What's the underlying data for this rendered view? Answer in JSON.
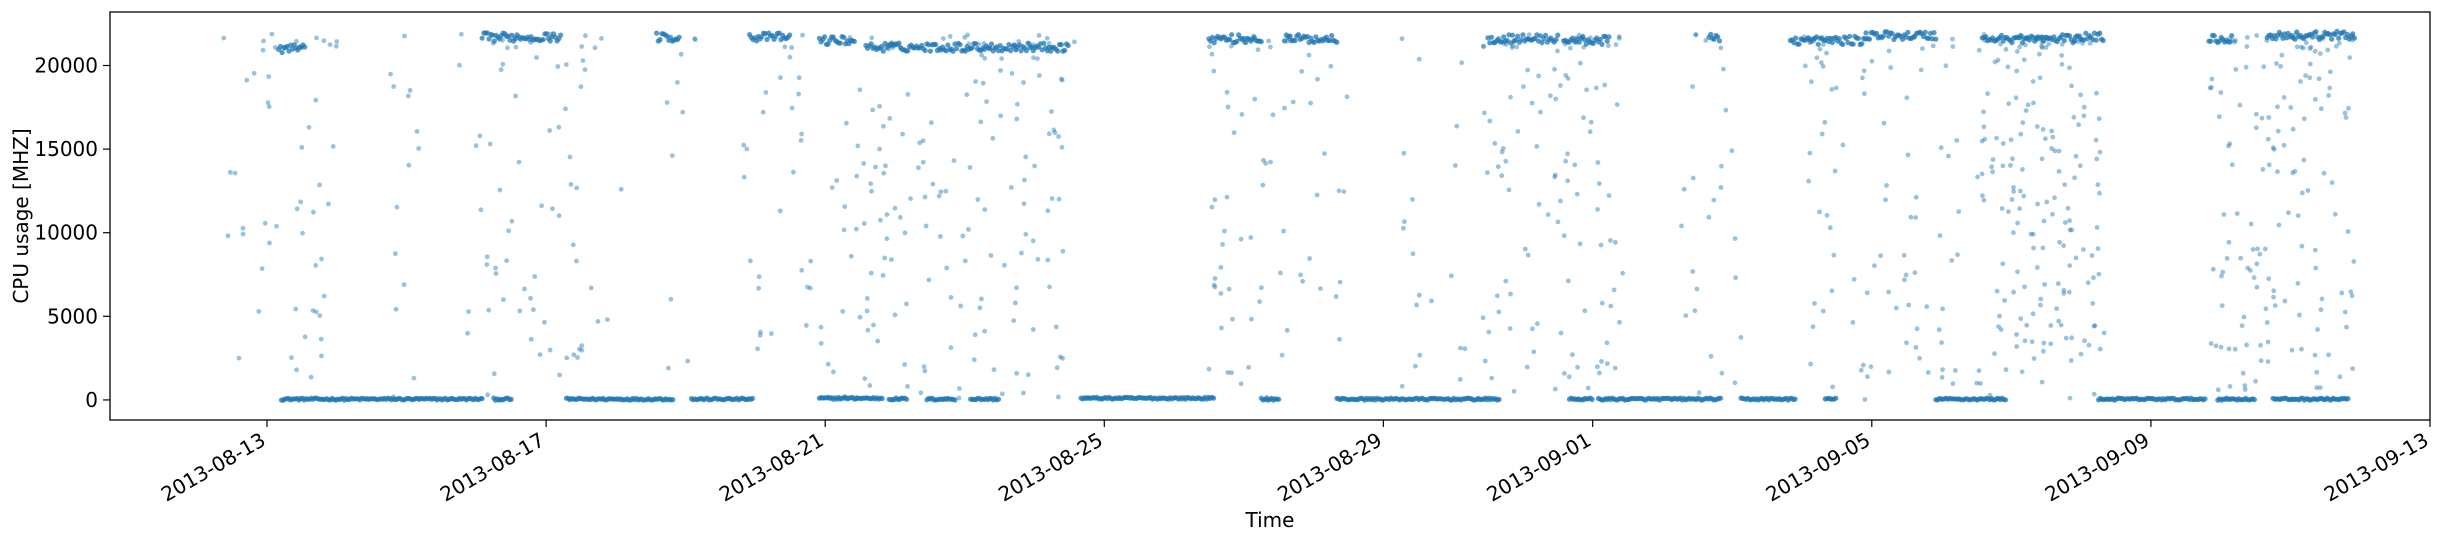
{
  "chart_data": {
    "type": "scatter",
    "title": "",
    "xlabel": "Time",
    "ylabel": "CPU usage [MHZ]",
    "x_type": "date",
    "xlim": [
      "2013-08-10T18:00",
      "2013-09-13T00:00"
    ],
    "ylim": [
      -1200,
      23200
    ],
    "x_ticks": [
      "2013-08-13",
      "2013-08-17",
      "2013-08-21",
      "2013-08-25",
      "2013-08-29",
      "2013-09-01",
      "2013-09-05",
      "2013-09-09",
      "2013-09-13"
    ],
    "y_ticks": [
      0,
      5000,
      10000,
      15000,
      20000
    ],
    "y_tick_labels": [
      "0",
      "5000",
      "10000",
      "15000",
      "20000"
    ],
    "grid": false,
    "legend": "none",
    "series": [
      {
        "color": "#1f77b4",
        "baseline_segments": [
          [
            "2013-08-13T05:00",
            "2013-08-16T02:00",
            50
          ],
          [
            "2013-08-16T06:00",
            "2013-08-16T12:00",
            50
          ],
          [
            "2013-08-17T07:00",
            "2013-08-18T20:00",
            50
          ],
          [
            "2013-08-19T02:00",
            "2013-08-19T23:00",
            50
          ],
          [
            "2013-08-20T22:00",
            "2013-08-21T20:00",
            100
          ],
          [
            "2013-08-21T22:00",
            "2013-08-22T04:00",
            60
          ],
          [
            "2013-08-22T11:00",
            "2013-08-22T21:00",
            50
          ],
          [
            "2013-08-23T02:00",
            "2013-08-23T12:00",
            50
          ],
          [
            "2013-08-24T16:00",
            "2013-08-26T14:00",
            100
          ],
          [
            "2013-08-27T06:00",
            "2013-08-27T12:00",
            50
          ],
          [
            "2013-08-28T08:00",
            "2013-08-30T16:00",
            50
          ],
          [
            "2013-08-31T16:00",
            "2013-09-01T00:00",
            50
          ],
          [
            "2013-09-01T02:00",
            "2013-09-02T20:00",
            50
          ],
          [
            "2013-09-03T03:00",
            "2013-09-03T22:00",
            50
          ],
          [
            "2013-09-04T08:00",
            "2013-09-04T12:00",
            50
          ],
          [
            "2013-09-05T22:00",
            "2013-09-06T22:00",
            50
          ],
          [
            "2013-09-08T06:00",
            "2013-09-09T19:00",
            50
          ],
          [
            "2013-09-09T23:00",
            "2013-09-10T12:00",
            50
          ],
          [
            "2013-09-10T18:00",
            "2013-09-11T20:00",
            50
          ]
        ],
        "plateau_segments": [
          [
            "2013-08-13T04:00",
            "2013-08-13T13:00",
            21000
          ],
          [
            "2013-08-16T02:00",
            "2013-08-17T05:00",
            21700
          ],
          [
            "2013-08-18T14:00",
            "2013-08-18T22:00",
            21700
          ],
          [
            "2013-08-19T22:00",
            "2013-08-20T12:00",
            21700
          ],
          [
            "2013-08-20T22:00",
            "2013-08-21T10:00",
            21500
          ],
          [
            "2013-08-21T14:00",
            "2013-08-24T12:00",
            21100
          ],
          [
            "2013-08-26T12:00",
            "2013-08-27T06:00",
            21600
          ],
          [
            "2013-08-27T14:00",
            "2013-08-28T08:00",
            21600
          ],
          [
            "2013-08-30T12:00",
            "2013-08-31T12:00",
            21600
          ],
          [
            "2013-08-31T14:00",
            "2013-09-01T06:00",
            21500
          ],
          [
            "2013-09-02T16:00",
            "2013-09-02T20:00",
            21700
          ],
          [
            "2013-09-03T20:00",
            "2013-09-04T22:00",
            21500
          ],
          [
            "2013-09-04T22:00",
            "2013-09-05T22:00",
            21800
          ],
          [
            "2013-09-06T14:00",
            "2013-09-07T22:00",
            21600
          ],
          [
            "2013-09-07T22:00",
            "2013-09-08T08:00",
            21700
          ],
          [
            "2013-09-09T20:00",
            "2013-09-10T04:00",
            21600
          ],
          [
            "2013-09-10T16:00",
            "2013-09-11T22:00",
            21800
          ]
        ],
        "scatter_ranges": [
          [
            "2013-08-12T09:00",
            "2013-08-13T12:00",
            28
          ],
          [
            "2013-08-13T12:00",
            "2013-08-14T00:00",
            22
          ],
          [
            "2013-08-14T18:00",
            "2013-08-15T06:00",
            14
          ],
          [
            "2013-08-15T18:00",
            "2013-08-17T12:00",
            60
          ],
          [
            "2013-08-17T12:00",
            "2013-08-18T02:00",
            12
          ],
          [
            "2013-08-18T16:00",
            "2013-08-19T06:00",
            10
          ],
          [
            "2013-08-19T16:00",
            "2013-08-21T08:00",
            40
          ],
          [
            "2013-08-21T08:00",
            "2013-08-24T14:00",
            160
          ],
          [
            "2013-08-26T12:00",
            "2013-08-28T12:00",
            70
          ],
          [
            "2013-08-29T06:00",
            "2013-08-30T10:00",
            20
          ],
          [
            "2013-08-30T10:00",
            "2013-09-01T12:00",
            110
          ],
          [
            "2013-09-02T06:00",
            "2013-09-03T06:00",
            26
          ],
          [
            "2013-09-03T22:00",
            "2013-09-06T06:00",
            90
          ],
          [
            "2013-09-06T12:00",
            "2013-09-08T08:00",
            180
          ],
          [
            "2013-09-09T20:00",
            "2013-09-11T23:00",
            150
          ]
        ]
      }
    ]
  }
}
